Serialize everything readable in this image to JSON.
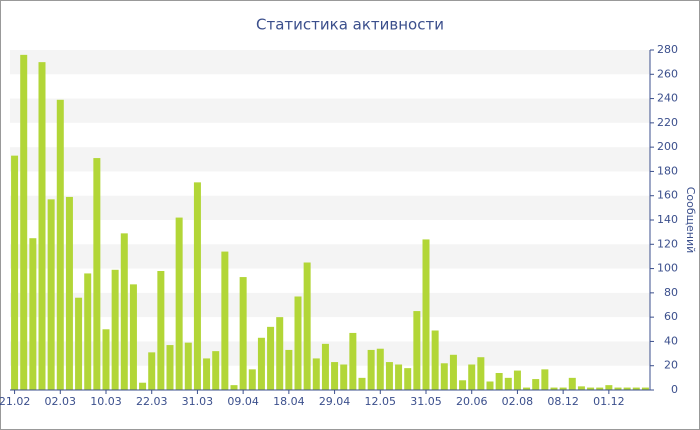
{
  "chart_data": {
    "type": "bar",
    "title": "Статистика активности",
    "y_label": "Сообщений",
    "categories": [
      "21.02",
      null,
      null,
      null,
      null,
      "02.03",
      null,
      null,
      null,
      null,
      "10.03",
      null,
      null,
      null,
      null,
      "22.03",
      null,
      null,
      null,
      null,
      "31.03",
      null,
      null,
      null,
      null,
      "09.04",
      null,
      null,
      null,
      null,
      "18.04",
      null,
      null,
      null,
      null,
      "29.04",
      null,
      null,
      null,
      null,
      "12.05",
      null,
      null,
      null,
      null,
      "31.05",
      null,
      null,
      null,
      null,
      "20.06",
      null,
      null,
      null,
      null,
      "02.08",
      null,
      null,
      null,
      null,
      "08.12",
      null,
      null,
      null,
      null,
      "01.12",
      null,
      null,
      null,
      null
    ],
    "values": [
      193,
      276,
      125,
      270,
      157,
      239,
      159,
      76,
      96,
      191,
      50,
      99,
      129,
      87,
      6,
      31,
      98,
      37,
      142,
      39,
      171,
      26,
      32,
      114,
      4,
      93,
      17,
      43,
      52,
      60,
      33,
      77,
      105,
      26,
      38,
      23,
      21,
      47,
      10,
      33,
      34,
      23,
      21,
      18,
      65,
      124,
      49,
      22,
      29,
      8,
      21,
      27,
      7,
      14,
      10,
      16,
      2,
      9,
      17,
      2,
      2,
      10,
      3,
      2,
      2,
      4,
      2,
      2,
      2,
      2
    ],
    "color": "#b2d637",
    "ylim": [
      0,
      280
    ],
    "yticks": [
      0,
      20,
      40,
      60,
      80,
      100,
      120,
      140,
      160,
      180,
      200,
      220,
      240,
      260,
      280
    ],
    "grid": true
  }
}
